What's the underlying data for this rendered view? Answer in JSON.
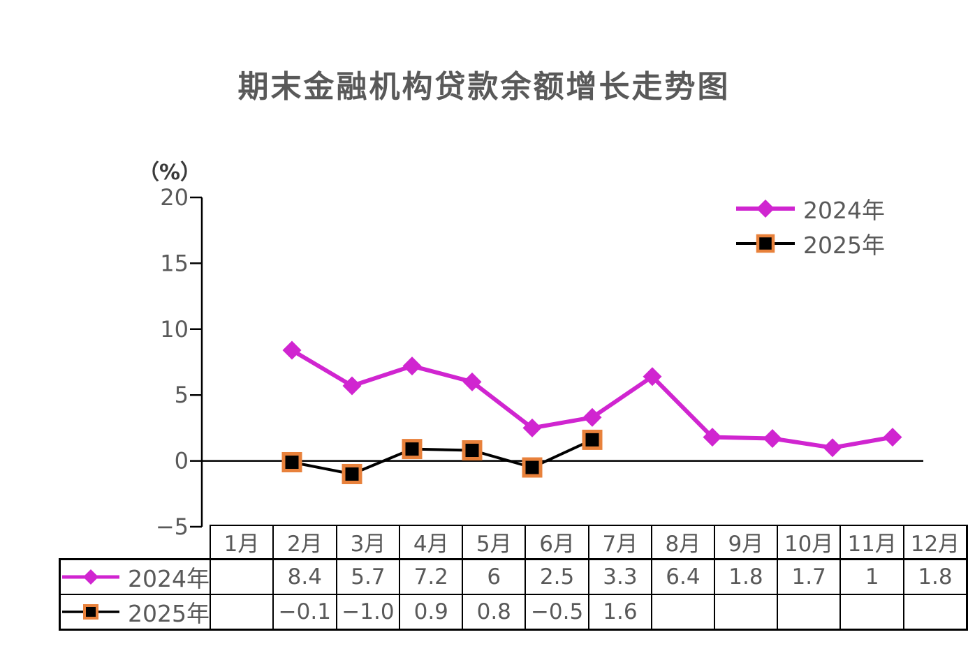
{
  "title": "期末金融机构贷款余额增长走势图",
  "y_axis": {
    "unit_label": "（%）",
    "tick_labels": [
      "20",
      "15",
      "10",
      "5",
      "0",
      "−5"
    ],
    "tick_values": [
      20,
      15,
      10,
      5,
      0,
      -5
    ]
  },
  "legend": {
    "items": [
      {
        "label": "2024年",
        "color": "#D025D0",
        "marker": "diamond"
      },
      {
        "label": "2025年",
        "color": "#000000",
        "marker": "square",
        "marker_border": "#E8813B"
      }
    ]
  },
  "chart_data": {
    "type": "line",
    "title": "期末金融机构贷款余额增长走势图",
    "ylabel": "（%）",
    "ylim": [
      -5,
      20
    ],
    "yticks": [
      20,
      15,
      10,
      5,
      0,
      -5
    ],
    "grid": false,
    "legend_position": "top-right",
    "categories": [
      "1月",
      "2月",
      "3月",
      "4月",
      "5月",
      "6月",
      "7月",
      "8月",
      "9月",
      "10月",
      "11月",
      "12月"
    ],
    "series": [
      {
        "name": "2024年",
        "color": "#D025D0",
        "marker": "diamond",
        "values": [
          null,
          8.4,
          5.7,
          7.2,
          6,
          2.5,
          3.3,
          6.4,
          1.8,
          1.7,
          1,
          1.8
        ]
      },
      {
        "name": "2025年",
        "color": "#000000",
        "marker": "square",
        "marker_border": "#E8813B",
        "values": [
          null,
          -0.1,
          -1.0,
          0.9,
          0.8,
          -0.5,
          1.6,
          null,
          null,
          null,
          null,
          null
        ]
      }
    ]
  },
  "table": {
    "columns": [
      "1月",
      "2月",
      "3月",
      "4月",
      "5月",
      "6月",
      "7月",
      "8月",
      "9月",
      "10月",
      "11月",
      "12月"
    ],
    "rows": [
      {
        "label": "2024年",
        "values": [
          "",
          "8.4",
          "5.7",
          "7.2",
          "6",
          "2.5",
          "3.3",
          "6.4",
          "1.8",
          "1.7",
          "1",
          "1.8"
        ]
      },
      {
        "label": "2025年",
        "values": [
          "",
          "−0.1",
          "−1.0",
          "0.9",
          "0.8",
          "−0.5",
          "1.6",
          "",
          "",
          "",
          "",
          ""
        ]
      }
    ]
  },
  "colors": {
    "text": "#595959",
    "axis": "#000000",
    "table_border": "#000000",
    "series_2024": "#D025D0",
    "series_2025": "#000000",
    "marker_border_2025": "#E8813B"
  }
}
